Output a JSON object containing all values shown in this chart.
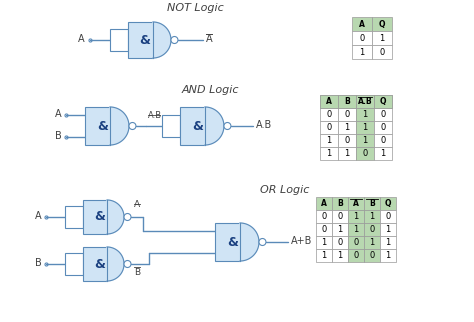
{
  "background_color": "#ffffff",
  "gate_fill": "#d0e4f5",
  "gate_edge": "#5a8ab8",
  "wire_color": "#5a8ab8",
  "text_color": "#1a4080",
  "label_color": "#404040",
  "bubble_fill": "#ffffff",
  "table_header_fill": "#b8d8b0",
  "table_row_fill": "#ffffff",
  "table_border": "#999999",
  "sections": [
    "NOT Logic",
    "AND Logic",
    "OR Logic"
  ],
  "not_table_headers": [
    "A",
    "Q"
  ],
  "not_table_rows": [
    [
      "0",
      "1"
    ],
    [
      "1",
      "0"
    ]
  ],
  "and_table_headers": [
    "A",
    "B",
    "A.B",
    "Q"
  ],
  "and_table_rows": [
    [
      "0",
      "0",
      "1",
      "0"
    ],
    [
      "0",
      "1",
      "1",
      "0"
    ],
    [
      "1",
      "0",
      "1",
      "0"
    ],
    [
      "1",
      "1",
      "0",
      "1"
    ]
  ],
  "or_table_headers": [
    "A",
    "B",
    "A",
    "B",
    "Q"
  ],
  "or_table_rows": [
    [
      "0",
      "0",
      "1",
      "1",
      "0"
    ],
    [
      "0",
      "1",
      "1",
      "0",
      "1"
    ],
    [
      "1",
      "0",
      "0",
      "1",
      "1"
    ],
    [
      "1",
      "1",
      "0",
      "0",
      "1"
    ]
  ]
}
